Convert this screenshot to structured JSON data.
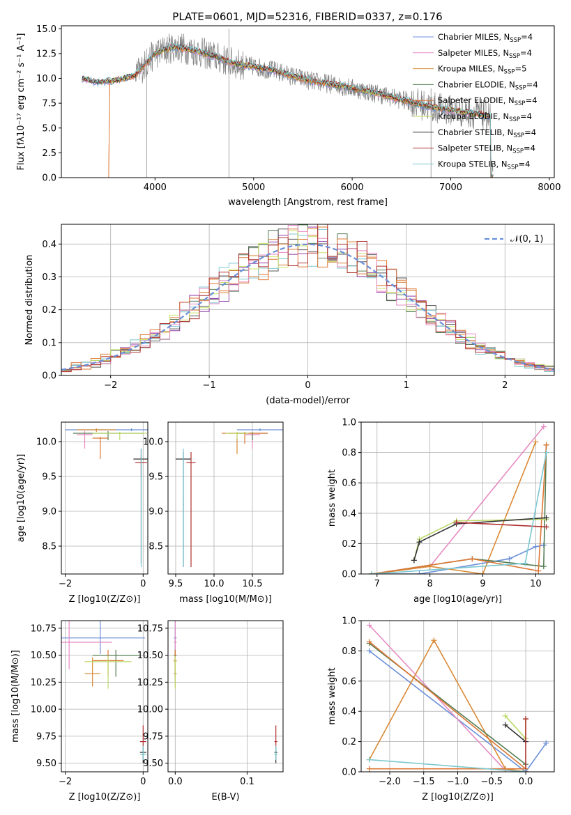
{
  "figure": {
    "title": "PLATE=0601, MJD=52316, FIBERID=0337, z=0.176"
  },
  "colors": {
    "models": [
      "#6a8fd8",
      "#e68ac2",
      "#d98a36",
      "#547d54",
      "#dd7733",
      "#bcd96a",
      "#333333",
      "#b03030",
      "#7cc8d0"
    ],
    "spectrum": "#7f7f7f",
    "normal": "#6a8fd8",
    "hist": [
      "#8e3aa5",
      "#d97b2f",
      "#547d54",
      "#555555",
      "#7cc8d0",
      "#dd7733",
      "#c9e26a",
      "#e68ac2",
      "#b03030"
    ]
  },
  "chart_data": [
    {
      "id": "spectrum",
      "type": "line",
      "title": "PLATE=0601, MJD=52316, FIBERID=0337, z=0.176",
      "xlabel": "wavelength [Angstrom, rest frame]",
      "ylabel": "Flux [f_λ10^-17 erg cm^-2 s^-1 A^-1]",
      "xlim": [
        3050,
        8050
      ],
      "ylim": [
        0,
        15.3
      ],
      "xticks": [
        "4000",
        "5000",
        "6000",
        "7000",
        "8000"
      ],
      "yticks": [
        "0.0",
        "2.5",
        "5.0",
        "7.5",
        "10.0",
        "12.5",
        "15.0"
      ],
      "legend_position": "top-right",
      "legend": [
        {
          "name": "Chabrier MILES",
          "nssp": "4"
        },
        {
          "name": "Salpeter MILES",
          "nssp": "4"
        },
        {
          "name": "Kroupa MILES",
          "nssp": "5"
        },
        {
          "name": "Chabrier ELODIE",
          "nssp": "4"
        },
        {
          "name": "Salpeter ELODIE",
          "nssp": "4"
        },
        {
          "name": "Kroupa ELODIE",
          "nssp": "4"
        },
        {
          "name": "Chabrier STELIB",
          "nssp": "4"
        },
        {
          "name": "Salpeter STELIB",
          "nssp": "4"
        },
        {
          "name": "Kroupa STELIB",
          "nssp": "4"
        }
      ],
      "continuum": [
        [
          3260,
          10.0
        ],
        [
          3400,
          9.6
        ],
        [
          3600,
          9.8
        ],
        [
          3800,
          10.3
        ],
        [
          4000,
          12.5
        ],
        [
          4200,
          13.2
        ],
        [
          4400,
          12.8
        ],
        [
          4600,
          12.2
        ],
        [
          4800,
          11.5
        ],
        [
          5000,
          11.2
        ],
        [
          5200,
          10.8
        ],
        [
          5400,
          10.2
        ],
        [
          5600,
          9.7
        ],
        [
          5800,
          9.4
        ],
        [
          6000,
          9.0
        ],
        [
          6200,
          8.6
        ],
        [
          6400,
          8.1
        ],
        [
          6600,
          7.6
        ],
        [
          6800,
          7.1
        ],
        [
          7000,
          6.8
        ],
        [
          7200,
          6.5
        ],
        [
          7400,
          6.2
        ]
      ]
    },
    {
      "id": "residuals",
      "type": "line",
      "xlabel": "(data-model)/error",
      "ylabel": "Normed distribution",
      "xlim": [
        -2.5,
        2.5
      ],
      "ylim": [
        0,
        0.46
      ],
      "xticks": [
        "−2",
        "−1",
        "0",
        "1",
        "2"
      ],
      "yticks": [
        "0.0",
        "0.1",
        "0.2",
        "0.3",
        "0.4"
      ],
      "legend_position": "top-right",
      "legend": [
        "𝒩(0, 1)"
      ]
    },
    {
      "id": "age-vs-Z",
      "type": "scatter",
      "xlabel": "Z [log10(Z/Z⊙)]",
      "ylabel": "age [log10(age/yr)]",
      "xlim": [
        -2.1,
        0.12
      ],
      "ylim": [
        8.1,
        10.28
      ],
      "xticks": [
        "−2",
        "0"
      ],
      "yticks": [
        "8.5",
        "9.0",
        "9.5",
        "10.0"
      ]
    },
    {
      "id": "age-vs-mass",
      "type": "scatter",
      "xlabel": "mass [log10(M/M⊙)]",
      "xlim": [
        9.4,
        10.9
      ],
      "ylim": [
        8.1,
        10.28
      ],
      "xticks": [
        "9.5",
        "10.0",
        "10.5"
      ],
      "yticks": [
        "8.5",
        "9.0",
        "9.5",
        "10.0"
      ]
    },
    {
      "id": "weight-vs-age",
      "type": "line",
      "xlabel": "age [log10(age/yr)]",
      "ylabel": "mass weight",
      "xlim": [
        6.7,
        10.35
      ],
      "ylim": [
        0,
        1.0
      ],
      "xticks": [
        "7",
        "8",
        "9",
        "10"
      ],
      "yticks": [
        "0.0",
        "0.2",
        "0.4",
        "0.6",
        "0.8",
        "1.0"
      ],
      "series": [
        {
          "points": [
            [
              6.9,
              0.0
            ],
            [
              7.8,
              0.0
            ],
            [
              9.5,
              0.1
            ],
            [
              10.0,
              0.18
            ],
            [
              10.15,
              0.19
            ]
          ]
        },
        {
          "points": [
            [
              6.9,
              0.0
            ],
            [
              8.0,
              0.05
            ],
            [
              10.15,
              0.97
            ]
          ]
        },
        {
          "points": [
            [
              6.9,
              0.0
            ],
            [
              8.0,
              0.05
            ],
            [
              9.0,
              0.0
            ],
            [
              10.0,
              0.87
            ]
          ]
        },
        {
          "points": [
            [
              6.9,
              0.0
            ],
            [
              8.8,
              0.1
            ],
            [
              10.15,
              0.05
            ],
            [
              10.2,
              0.85
            ]
          ]
        },
        {
          "points": [
            [
              6.9,
              0.0
            ],
            [
              8.8,
              0.1
            ],
            [
              10.05,
              0.02
            ],
            [
              10.2,
              0.85
            ]
          ]
        },
        {
          "points": [
            [
              7.7,
              0.09
            ],
            [
              7.8,
              0.23
            ],
            [
              8.5,
              0.35
            ],
            [
              10.2,
              0.36
            ]
          ]
        },
        {
          "points": [
            [
              7.7,
              0.09
            ],
            [
              7.8,
              0.21
            ],
            [
              8.5,
              0.33
            ],
            [
              10.2,
              0.37
            ]
          ]
        },
        {
          "points": [
            [
              8.5,
              0.34
            ],
            [
              10.2,
              0.31
            ]
          ]
        },
        {
          "points": [
            [
              6.9,
              0.0
            ],
            [
              9.8,
              0.07
            ],
            [
              10.2,
              0.8
            ]
          ]
        }
      ]
    },
    {
      "id": "mass-vs-Z",
      "type": "scatter",
      "xlabel": "Z [log10(Z/Z⊙)]",
      "ylabel": "mass [log10(M/M⊙)]",
      "xlim": [
        -2.1,
        0.12
      ],
      "ylim": [
        9.42,
        10.82
      ],
      "xticks": [
        "−2",
        "0"
      ],
      "yticks": [
        "9.50",
        "9.75",
        "10.00",
        "10.25",
        "10.50",
        "10.75"
      ]
    },
    {
      "id": "mass-vs-EBV",
      "type": "scatter",
      "xlabel": "E(B-V)",
      "xlim": [
        -0.01,
        0.15
      ],
      "ylim": [
        9.42,
        10.82
      ],
      "xticks": [
        "0.0",
        "0.1"
      ],
      "yticks": [
        "9.50",
        "9.75",
        "10.00",
        "10.25",
        "10.50",
        "10.75"
      ]
    },
    {
      "id": "weight-vs-Z",
      "type": "line",
      "xlabel": "Z [log10(Z/Z⊙)]",
      "ylabel": "mass weight",
      "xlim": [
        -2.42,
        0.42
      ],
      "ylim": [
        0,
        1.0
      ],
      "xticks": [
        "−2.0",
        "−1.5",
        "−1.0",
        "−0.5",
        "0.0"
      ],
      "yticks": [
        "0.0",
        "0.2",
        "0.4",
        "0.6",
        "0.8",
        "1.0"
      ],
      "series": [
        {
          "points": [
            [
              -2.3,
              0.8
            ],
            [
              0.0,
              0.0
            ],
            [
              0.3,
              0.19
            ]
          ]
        },
        {
          "points": [
            [
              -2.3,
              0.97
            ],
            [
              -0.3,
              0.01
            ],
            [
              0.0,
              0.0
            ]
          ]
        },
        {
          "points": [
            [
              -2.3,
              0.08
            ],
            [
              -1.35,
              0.87
            ],
            [
              -0.3,
              0.02
            ],
            [
              0.0,
              0.0
            ]
          ]
        },
        {
          "points": [
            [
              -2.3,
              0.85
            ],
            [
              0.0,
              0.05
            ]
          ]
        },
        {
          "points": [
            [
              -2.3,
              0.02
            ],
            [
              0.0,
              0.02
            ],
            [
              -2.3,
              0.86
            ]
          ]
        },
        {
          "points": [
            [
              -0.3,
              0.37
            ],
            [
              0.0,
              0.22
            ],
            [
              0.0,
              0.35
            ]
          ]
        },
        {
          "points": [
            [
              -0.3,
              0.31
            ],
            [
              0.0,
              0.2
            ]
          ]
        },
        {
          "points": [
            [
              0.0,
              0.0
            ],
            [
              0.0,
              0.35
            ]
          ]
        },
        {
          "points": [
            [
              -2.3,
              0.08
            ],
            [
              0.0,
              0.0
            ]
          ]
        }
      ]
    }
  ]
}
